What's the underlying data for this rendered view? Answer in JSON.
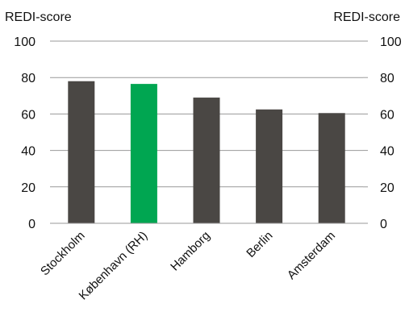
{
  "chart_data": {
    "type": "bar",
    "ylabel_left": "REDI-score",
    "ylabel_right": "REDI-score",
    "categories": [
      "Stockholm",
      "København (RH)",
      "Hamborg",
      "Berlin",
      "Amsterdam"
    ],
    "values": [
      78,
      76.5,
      69,
      62.5,
      60.5
    ],
    "ylim": [
      0,
      100
    ],
    "yticks": [
      0,
      20,
      40,
      60,
      80,
      100
    ],
    "grid": true,
    "legend": "none",
    "colors": {
      "bar": "#4a4744",
      "highlight": "#00a651"
    },
    "highlight_index": 1
  }
}
